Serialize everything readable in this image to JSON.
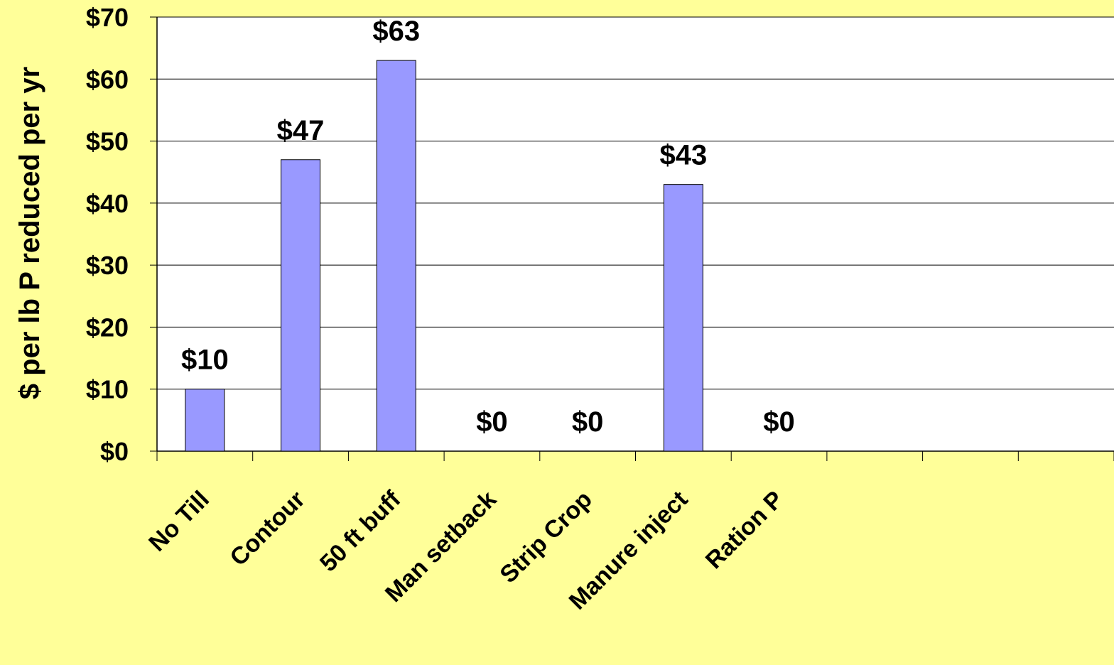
{
  "chart_data": {
    "type": "bar",
    "title": "",
    "xlabel": "",
    "ylabel": "$ per lb P reduced per yr",
    "categories": [
      "No Till",
      "Contour",
      "50 ft buff",
      "Man setback",
      "Strip Crop",
      "Manure inject",
      "Ration P",
      "",
      "",
      ""
    ],
    "values": [
      10,
      47,
      63,
      0,
      0,
      43,
      0,
      null,
      null,
      null
    ],
    "data_labels": [
      "$10",
      "$47",
      "$63",
      "$0",
      "$0",
      "$43",
      "$0",
      "",
      "",
      ""
    ],
    "y_ticks": [
      "$0",
      "$10",
      "$20",
      "$30",
      "$40",
      "$50",
      "$60",
      "$70"
    ],
    "y_tick_values": [
      0,
      10,
      20,
      30,
      40,
      50,
      60,
      70
    ],
    "ylim": [
      0,
      70
    ],
    "grid": true,
    "legend": "none",
    "colors": {
      "bar": "#9999ff",
      "plot_background": "#ffffff",
      "page_background": "#ffff99",
      "axis": "#000000"
    }
  }
}
